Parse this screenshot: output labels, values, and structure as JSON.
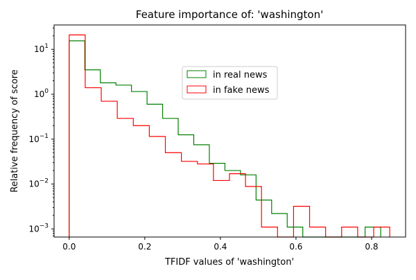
{
  "chart_data": {
    "type": "histogram-step",
    "title": "Feature importance of: 'washington'",
    "xlabel": "TFIDF values of 'washington'",
    "ylabel": "Relative frequency of score",
    "xlim": [
      -0.04,
      0.89
    ],
    "ylim": [
      0.00066,
      35
    ],
    "yscale": "log",
    "grid": false,
    "legend_position": "center",
    "x_ticks": [
      {
        "value": 0.0,
        "label": "0.0"
      },
      {
        "value": 0.2,
        "label": "0.2"
      },
      {
        "value": 0.4,
        "label": "0.4"
      },
      {
        "value": 0.6,
        "label": "0.6"
      },
      {
        "value": 0.8,
        "label": "0.8"
      }
    ],
    "y_ticks": [
      {
        "value": 10,
        "base": "10",
        "exp": "1"
      },
      {
        "value": 1,
        "base": "10",
        "exp": "0"
      },
      {
        "value": 0.1,
        "base": "10",
        "exp": "−1"
      },
      {
        "value": 0.01,
        "base": "10",
        "exp": "−2"
      },
      {
        "value": 0.001,
        "base": "10",
        "exp": "−3"
      }
    ],
    "series": [
      {
        "name": "in real news",
        "color": "#008000",
        "bins": [
          0.0,
          0.0412,
          0.0824,
          0.1236,
          0.1648,
          0.206,
          0.2472,
          0.2884,
          0.3296,
          0.3708,
          0.412,
          0.4532,
          0.4944,
          0.5356,
          0.5768,
          0.618,
          0.6592,
          0.7004,
          0.7416,
          0.7828,
          0.824
        ],
        "values": [
          15.5,
          3.5,
          1.8,
          1.6,
          1.15,
          0.6,
          0.29,
          0.125,
          0.075,
          0.029,
          0.02,
          0.016,
          0.0044,
          0.0022,
          0.0011,
          0,
          0,
          0,
          0,
          0.0011
        ]
      },
      {
        "name": "in fake news",
        "color": "#ff0000",
        "bins": [
          0.0,
          0.0424,
          0.0848,
          0.1272,
          0.1696,
          0.212,
          0.2544,
          0.2968,
          0.3392,
          0.3816,
          0.424,
          0.4664,
          0.5088,
          0.5512,
          0.5936,
          0.636,
          0.6784,
          0.7208,
          0.7632,
          0.8056,
          0.848
        ],
        "values": [
          21,
          1.4,
          0.7,
          0.29,
          0.2,
          0.115,
          0.05,
          0.032,
          0.028,
          0.012,
          0.017,
          0.0088,
          0.0011,
          0,
          0.0032,
          0.0011,
          0,
          0.0011,
          0,
          0.0011
        ]
      }
    ]
  }
}
